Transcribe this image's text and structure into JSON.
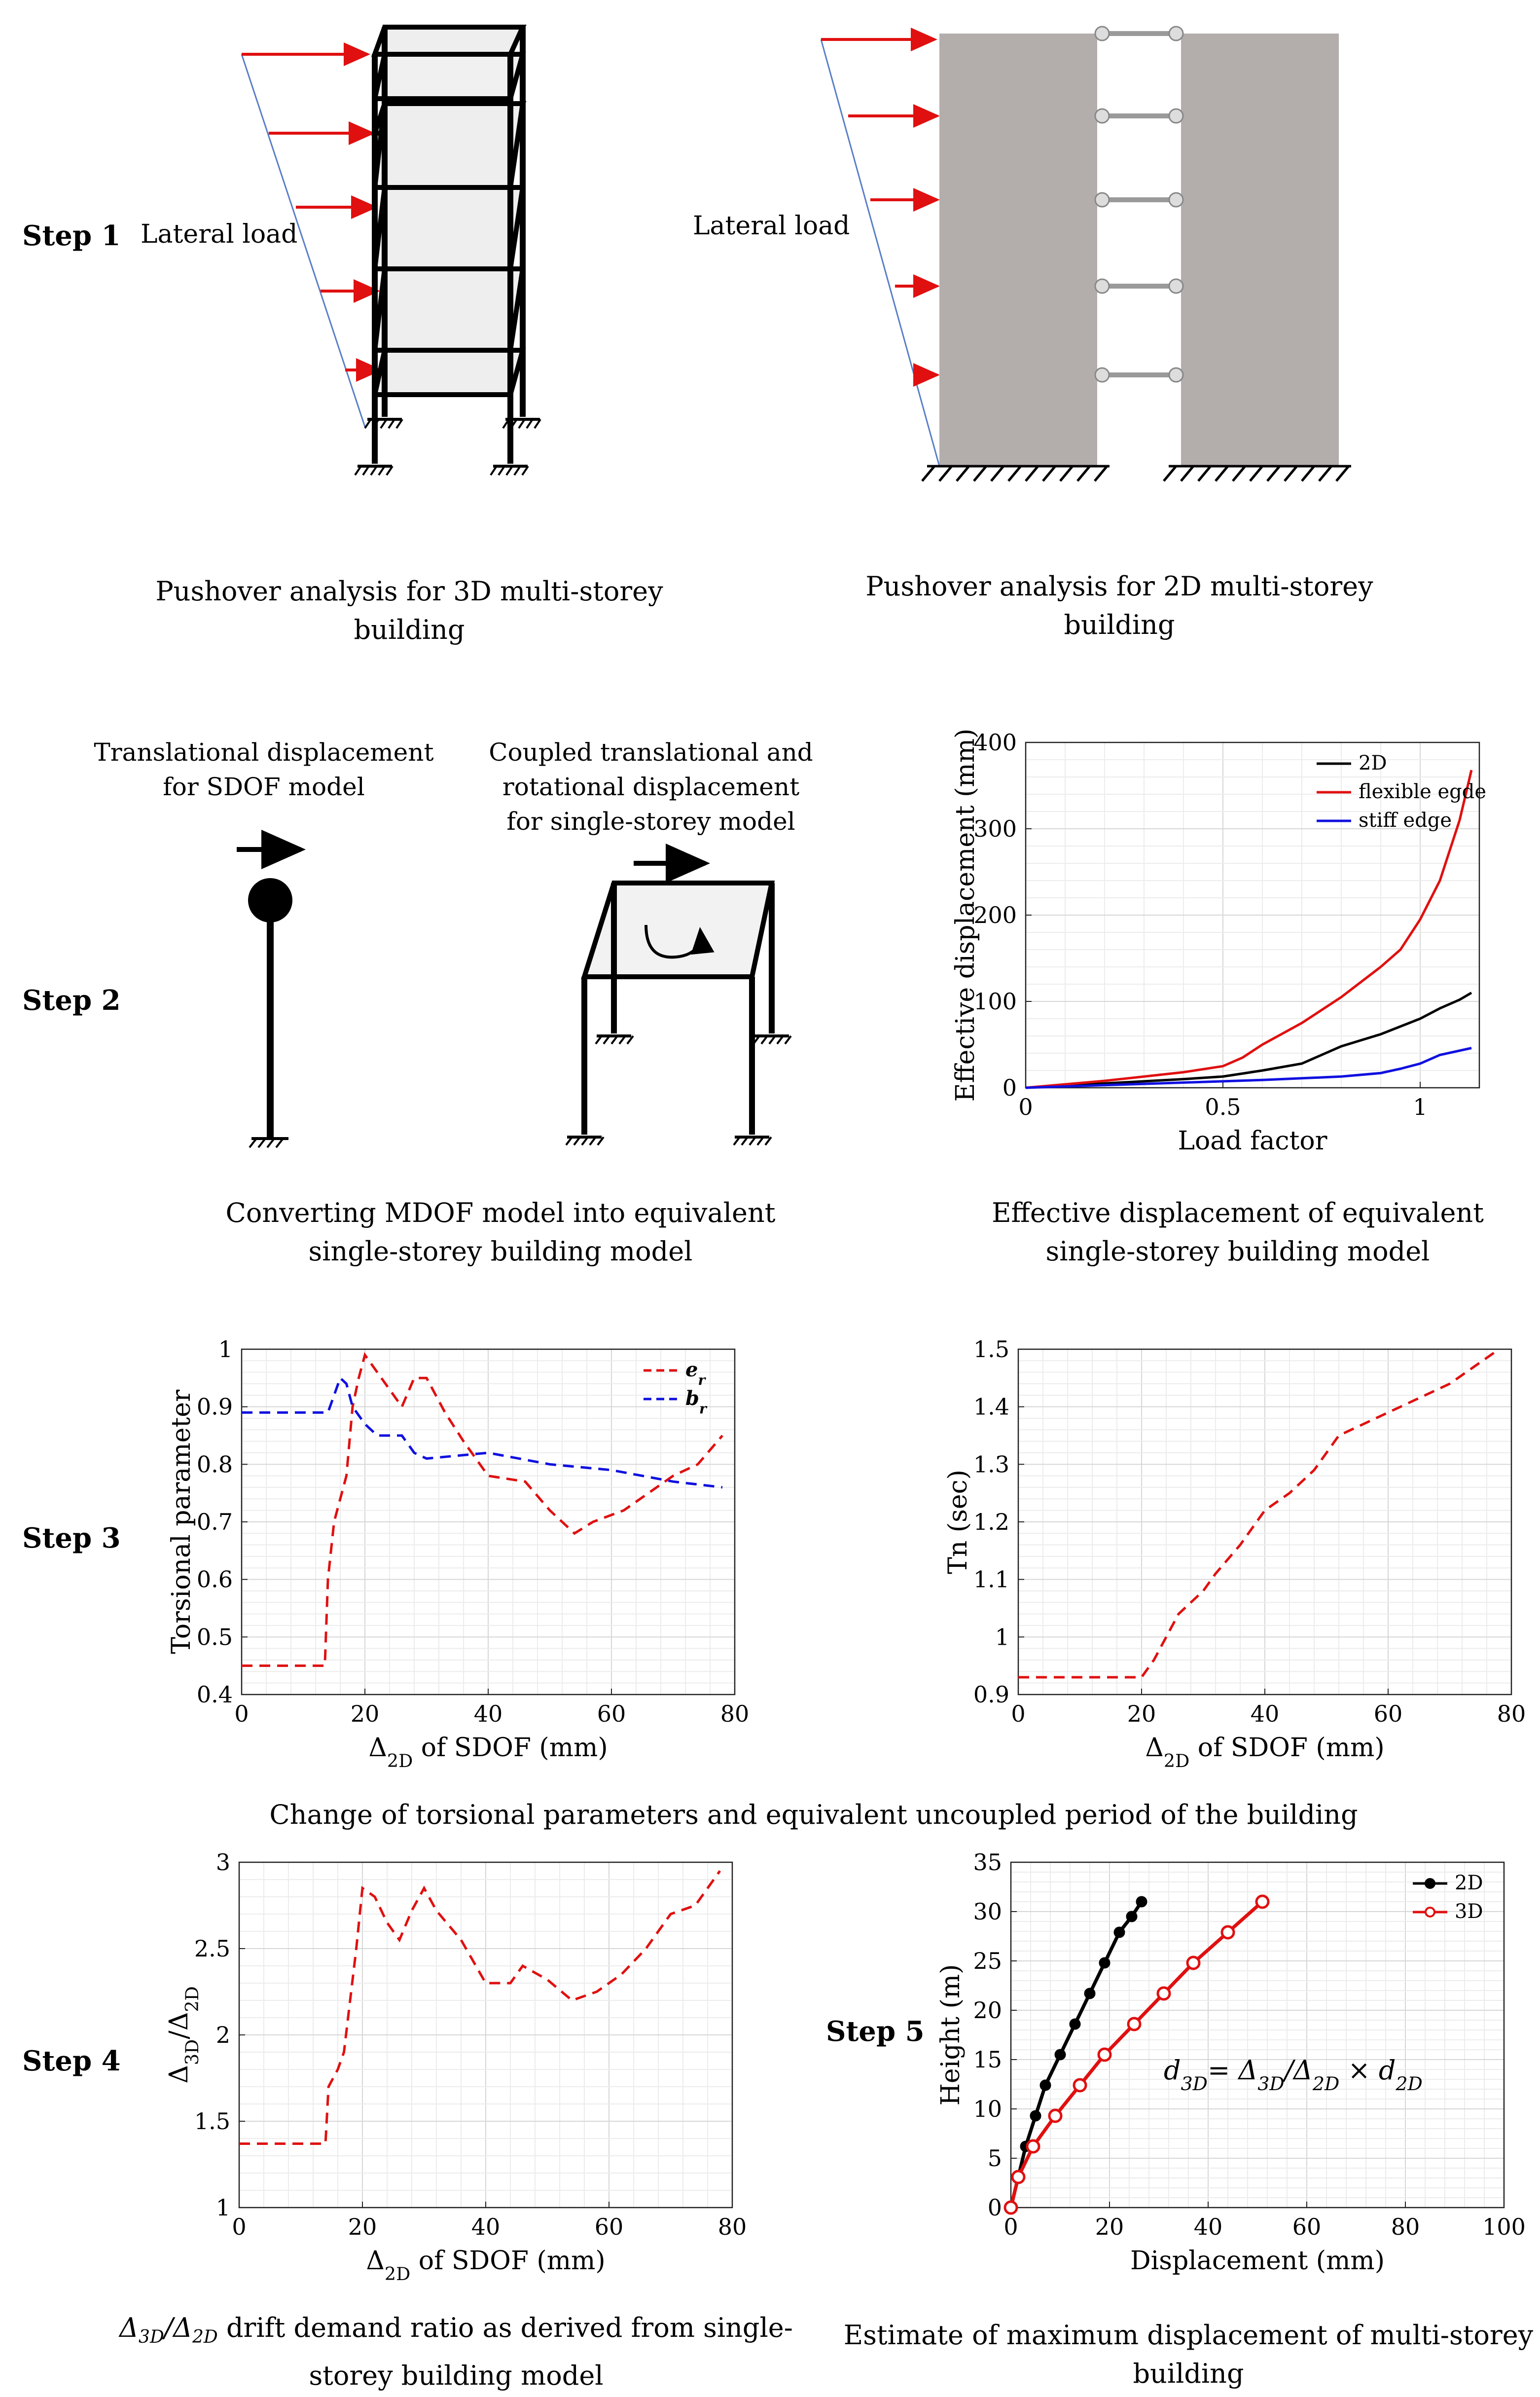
{
  "steps": [
    "Step 1",
    "Step 2",
    "Step 3",
    "Step 4",
    "Step 5"
  ],
  "step1": {
    "lateral_load_left": "Lateral load",
    "lateral_load_right": "Lateral load",
    "caption_3d_line1": "Pushover analysis for 3D multi-storey",
    "caption_3d_line2": "building",
    "caption_2d_line1": "Pushover analysis for 2D multi-storey",
    "caption_2d_line2": "building"
  },
  "step2": {
    "sdof_title_line1": "Translational displacement",
    "sdof_title_line2": "for SDOF model",
    "ss_title_line1": "Coupled translational and",
    "ss_title_line2": "rotational displacement",
    "ss_title_line3": "for single-storey model",
    "caption_left_line1": "Converting MDOF model into equivalent",
    "caption_left_line2": "single-storey building model",
    "caption_right_line1": "Effective displacement of  equivalent",
    "caption_right_line2": "single-storey building model"
  },
  "step3": {
    "caption": "Change of torsional parameters and equivalent uncoupled period of the building"
  },
  "step4": {
    "caption_line1_suffix": " drift demand ratio as derived from single-",
    "caption_line2": "storey building model"
  },
  "step5": {
    "caption_line1": "Estimate of maximum displacement of multi-storey",
    "caption_line2": "building",
    "formula": "d3D = Δ3D/Δ2D × d2D"
  },
  "chart_data": [
    {
      "id": "effective-displacement",
      "type": "line",
      "xlabel": "Load factor",
      "ylabel": "Effective displacement (mm)",
      "xlim": [
        0,
        1.15
      ],
      "ylim": [
        0,
        400
      ],
      "xticks": [
        0,
        0.5,
        1
      ],
      "yticks": [
        0,
        100,
        200,
        300,
        400
      ],
      "grid": true,
      "legend": "top-right",
      "series": [
        {
          "name": "2D",
          "color": "#000000",
          "dash": false,
          "x": [
            0,
            0.2,
            0.4,
            0.5,
            0.6,
            0.7,
            0.75,
            0.8,
            0.9,
            1.0,
            1.05,
            1.1,
            1.13
          ],
          "y": [
            0,
            5,
            10,
            13,
            20,
            28,
            38,
            48,
            62,
            80,
            92,
            102,
            110
          ]
        },
        {
          "name": "flexible egde",
          "color": "#e01010",
          "dash": false,
          "x": [
            0,
            0.2,
            0.4,
            0.5,
            0.55,
            0.6,
            0.7,
            0.8,
            0.9,
            0.95,
            1.0,
            1.05,
            1.1,
            1.13
          ],
          "y": [
            0,
            8,
            18,
            25,
            35,
            50,
            75,
            105,
            140,
            160,
            195,
            240,
            310,
            368
          ]
        },
        {
          "name": "stiff edge",
          "color": "#1010e0",
          "dash": false,
          "x": [
            0,
            0.2,
            0.4,
            0.6,
            0.8,
            0.9,
            0.95,
            1.0,
            1.05,
            1.13
          ],
          "y": [
            0,
            3,
            6,
            9,
            13,
            17,
            22,
            28,
            38,
            46
          ]
        }
      ]
    },
    {
      "id": "torsional-parameter",
      "type": "line",
      "xlabel": "Δ2D of SDOF (mm)",
      "ylabel": "Torsional parameter",
      "xlim": [
        0,
        80
      ],
      "ylim": [
        0.4,
        1
      ],
      "xticks": [
        0,
        20,
        40,
        60,
        80
      ],
      "yticks": [
        0.4,
        0.5,
        0.6,
        0.7,
        0.8,
        0.9,
        1
      ],
      "grid": true,
      "legend": "top-right",
      "series": [
        {
          "name": "er",
          "color": "#e01010",
          "dash": true,
          "x": [
            0,
            13.5,
            14,
            15,
            16,
            17,
            18,
            19,
            20,
            22,
            24,
            26,
            28,
            30,
            33,
            36,
            40,
            46,
            50,
            54,
            57,
            62,
            66,
            70,
            74,
            78
          ],
          "y": [
            0.45,
            0.45,
            0.6,
            0.7,
            0.74,
            0.78,
            0.9,
            0.95,
            0.99,
            0.96,
            0.93,
            0.9,
            0.95,
            0.95,
            0.89,
            0.84,
            0.78,
            0.77,
            0.72,
            0.68,
            0.7,
            0.72,
            0.75,
            0.78,
            0.8,
            0.85
          ]
        },
        {
          "name": "br",
          "color": "#1010e0",
          "dash": true,
          "x": [
            0,
            12,
            14,
            16,
            17,
            18,
            20,
            22,
            24,
            26,
            28,
            30,
            40,
            50,
            60,
            70,
            78
          ],
          "y": [
            0.89,
            0.89,
            0.89,
            0.95,
            0.94,
            0.9,
            0.87,
            0.85,
            0.85,
            0.85,
            0.82,
            0.81,
            0.82,
            0.8,
            0.79,
            0.77,
            0.76
          ]
        }
      ]
    },
    {
      "id": "tn-period",
      "type": "line",
      "xlabel": "Δ2D of SDOF (mm)",
      "ylabel": "Tn (sec)",
      "xlim": [
        0,
        80
      ],
      "ylim": [
        0.9,
        1.5
      ],
      "xticks": [
        0,
        20,
        40,
        60,
        80
      ],
      "yticks": [
        0.9,
        1,
        1.1,
        1.2,
        1.3,
        1.4,
        1.5
      ],
      "grid": true,
      "legend": "none",
      "series": [
        {
          "name": "",
          "color": "#e01010",
          "dash": true,
          "x": [
            0,
            20,
            22,
            24,
            26,
            28,
            30,
            32,
            36,
            40,
            44,
            48,
            52,
            60,
            70,
            78
          ],
          "y": [
            0.93,
            0.93,
            0.96,
            1.0,
            1.04,
            1.06,
            1.08,
            1.11,
            1.16,
            1.22,
            1.25,
            1.29,
            1.35,
            1.39,
            1.44,
            1.5
          ]
        }
      ]
    },
    {
      "id": "drift-ratio",
      "type": "line",
      "xlabel": "Δ2D of SDOF (mm)",
      "ylabel": "Δ3D/Δ2D",
      "xlim": [
        0,
        80
      ],
      "ylim": [
        1,
        3
      ],
      "xticks": [
        0,
        20,
        40,
        60,
        80
      ],
      "yticks": [
        1,
        1.5,
        2,
        2.5,
        3
      ],
      "grid": true,
      "legend": "none",
      "series": [
        {
          "name": "",
          "color": "#e01010",
          "dash": true,
          "x": [
            0,
            14,
            14.5,
            16,
            17,
            18,
            19,
            20,
            22,
            24,
            26,
            28,
            30,
            32,
            36,
            40,
            44,
            46,
            50,
            54,
            58,
            62,
            66,
            70,
            74,
            78
          ],
          "y": [
            1.37,
            1.37,
            1.7,
            1.8,
            1.9,
            2.2,
            2.5,
            2.85,
            2.8,
            2.65,
            2.55,
            2.72,
            2.85,
            2.72,
            2.55,
            2.3,
            2.3,
            2.4,
            2.32,
            2.2,
            2.25,
            2.35,
            2.5,
            2.7,
            2.75,
            2.95
          ]
        }
      ]
    },
    {
      "id": "height-displacement",
      "type": "line",
      "xlabel": "Displacement (mm)",
      "ylabel": "Height (m)",
      "xlim": [
        0,
        100
      ],
      "ylim": [
        0,
        35
      ],
      "xticks": [
        0,
        20,
        40,
        60,
        80,
        100
      ],
      "yticks": [
        0,
        5,
        10,
        15,
        20,
        25,
        30,
        35
      ],
      "grid": true,
      "legend": "top-right",
      "series": [
        {
          "name": "2D",
          "color": "#000000",
          "dash": false,
          "markers": true,
          "x": [
            0,
            1.5,
            3,
            5,
            7,
            10,
            13,
            16,
            19,
            22,
            24.5,
            26.5
          ],
          "y": [
            0,
            3.1,
            6.2,
            9.3,
            12.4,
            15.5,
            18.6,
            21.7,
            24.8,
            27.9,
            29.5,
            31
          ]
        },
        {
          "name": "3D",
          "color": "#e01010",
          "dash": false,
          "markers": true,
          "x": [
            0,
            1.5,
            4.5,
            9,
            14,
            19,
            25,
            31,
            37,
            44,
            51
          ],
          "y": [
            0,
            3.1,
            6.2,
            9.3,
            12.4,
            15.5,
            18.6,
            21.7,
            24.8,
            27.9,
            31
          ]
        }
      ]
    }
  ]
}
